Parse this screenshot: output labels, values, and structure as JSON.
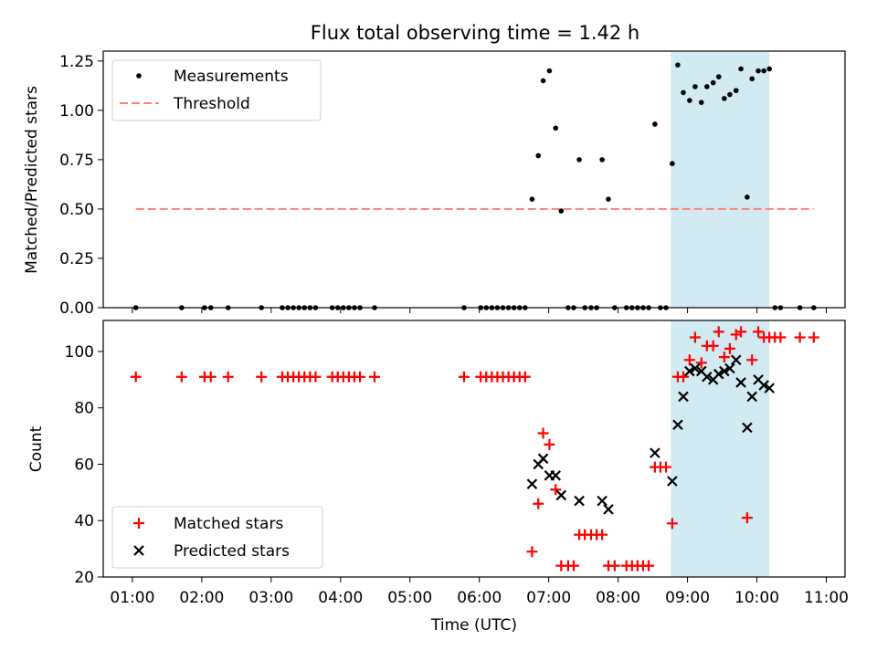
{
  "chart_data": {
    "type": "scatter",
    "title": "Flux total observing time = 1.42 h",
    "xlabel": "Time (UTC)",
    "x_ticks": [
      "01:00",
      "02:00",
      "03:00",
      "04:00",
      "05:00",
      "06:00",
      "07:00",
      "08:00",
      "09:00",
      "10:00",
      "11:00"
    ],
    "x_tick_hours": [
      1,
      2,
      3,
      4,
      5,
      6,
      7,
      8,
      9,
      10,
      11
    ],
    "xlim": [
      0.58,
      11.27
    ],
    "shaded_region": {
      "from": 8.76,
      "to": 10.18,
      "color": "#add8e6"
    },
    "top": {
      "ylabel": "Matched/Predicted stars",
      "ylim": [
        0,
        1.3
      ],
      "y_ticks": [
        "0.00",
        "0.25",
        "0.50",
        "0.75",
        "1.00",
        "1.25"
      ],
      "y_tick_values": [
        0,
        0.25,
        0.5,
        0.75,
        1.0,
        1.25
      ],
      "legend": {
        "measurements": "Measurements",
        "threshold": "Threshold"
      },
      "threshold": {
        "x": [
          1.05,
          10.82
        ],
        "y": 0.5,
        "color": "#ff7f7f"
      },
      "measurements": [
        [
          1.05,
          0
        ],
        [
          1.71,
          0
        ],
        [
          2.04,
          0
        ],
        [
          2.13,
          0
        ],
        [
          2.38,
          0
        ],
        [
          2.86,
          0
        ],
        [
          3.16,
          0
        ],
        [
          3.24,
          0
        ],
        [
          3.32,
          0
        ],
        [
          3.4,
          0
        ],
        [
          3.48,
          0
        ],
        [
          3.56,
          0
        ],
        [
          3.64,
          0
        ],
        [
          3.88,
          0
        ],
        [
          3.96,
          0
        ],
        [
          4.04,
          0
        ],
        [
          4.12,
          0
        ],
        [
          4.2,
          0
        ],
        [
          4.28,
          0
        ],
        [
          4.49,
          0
        ],
        [
          5.78,
          0
        ],
        [
          6.02,
          0
        ],
        [
          6.1,
          0
        ],
        [
          6.18,
          0
        ],
        [
          6.26,
          0
        ],
        [
          6.34,
          0
        ],
        [
          6.42,
          0
        ],
        [
          6.5,
          0
        ],
        [
          6.58,
          0
        ],
        [
          6.66,
          0
        ],
        [
          6.76,
          0.55
        ],
        [
          6.85,
          0.77
        ],
        [
          6.92,
          1.15
        ],
        [
          7.01,
          1.2
        ],
        [
          7.1,
          0.91
        ],
        [
          7.18,
          0.49
        ],
        [
          7.28,
          0
        ],
        [
          7.36,
          0
        ],
        [
          7.44,
          0.75
        ],
        [
          7.52,
          0
        ],
        [
          7.61,
          0
        ],
        [
          7.69,
          0
        ],
        [
          7.77,
          0.75
        ],
        [
          7.86,
          0.55
        ],
        [
          7.95,
          0
        ],
        [
          8.12,
          0
        ],
        [
          8.2,
          0
        ],
        [
          8.28,
          0
        ],
        [
          8.36,
          0
        ],
        [
          8.44,
          0
        ],
        [
          8.53,
          0.93
        ],
        [
          8.61,
          0
        ],
        [
          8.69,
          0
        ],
        [
          8.78,
          0.73
        ],
        [
          8.86,
          1.23
        ],
        [
          8.94,
          1.09
        ],
        [
          9.03,
          1.05
        ],
        [
          9.11,
          1.12
        ],
        [
          9.2,
          1.04
        ],
        [
          9.28,
          1.12
        ],
        [
          9.37,
          1.14
        ],
        [
          9.45,
          1.17
        ],
        [
          9.53,
          1.06
        ],
        [
          9.61,
          1.08
        ],
        [
          9.7,
          1.1
        ],
        [
          9.77,
          1.21
        ],
        [
          9.86,
          0.56
        ],
        [
          9.93,
          1.16
        ],
        [
          10.02,
          1.2
        ],
        [
          10.1,
          1.2
        ],
        [
          10.18,
          1.21
        ],
        [
          10.26,
          0
        ],
        [
          10.34,
          0
        ],
        [
          10.62,
          0
        ],
        [
          10.82,
          0
        ]
      ]
    },
    "bottom": {
      "ylabel": "Count",
      "ylim": [
        20,
        111
      ],
      "y_ticks": [
        "20",
        "40",
        "60",
        "80",
        "100"
      ],
      "y_tick_values": [
        20,
        40,
        60,
        80,
        100
      ],
      "legend": {
        "matched": "Matched stars",
        "predicted": "Predicted stars"
      },
      "matched": [
        [
          1.05,
          91
        ],
        [
          1.71,
          91
        ],
        [
          2.04,
          91
        ],
        [
          2.13,
          91
        ],
        [
          2.38,
          91
        ],
        [
          2.86,
          91
        ],
        [
          3.16,
          91
        ],
        [
          3.24,
          91
        ],
        [
          3.32,
          91
        ],
        [
          3.4,
          91
        ],
        [
          3.48,
          91
        ],
        [
          3.56,
          91
        ],
        [
          3.64,
          91
        ],
        [
          3.88,
          91
        ],
        [
          3.96,
          91
        ],
        [
          4.04,
          91
        ],
        [
          4.12,
          91
        ],
        [
          4.2,
          91
        ],
        [
          4.28,
          91
        ],
        [
          4.49,
          91
        ],
        [
          5.78,
          91
        ],
        [
          6.02,
          91
        ],
        [
          6.1,
          91
        ],
        [
          6.18,
          91
        ],
        [
          6.26,
          91
        ],
        [
          6.34,
          91
        ],
        [
          6.42,
          91
        ],
        [
          6.5,
          91
        ],
        [
          6.58,
          91
        ],
        [
          6.66,
          91
        ],
        [
          6.76,
          29
        ],
        [
          6.85,
          46
        ],
        [
          6.92,
          71
        ],
        [
          7.01,
          67
        ],
        [
          7.1,
          51
        ],
        [
          7.18,
          24
        ],
        [
          7.28,
          24
        ],
        [
          7.36,
          24
        ],
        [
          7.44,
          35
        ],
        [
          7.52,
          35
        ],
        [
          7.61,
          35
        ],
        [
          7.69,
          35
        ],
        [
          7.77,
          35
        ],
        [
          7.86,
          24
        ],
        [
          7.95,
          24
        ],
        [
          8.12,
          24
        ],
        [
          8.2,
          24
        ],
        [
          8.28,
          24
        ],
        [
          8.36,
          24
        ],
        [
          8.44,
          24
        ],
        [
          8.53,
          59
        ],
        [
          8.61,
          59
        ],
        [
          8.69,
          59
        ],
        [
          8.78,
          39
        ],
        [
          8.86,
          91
        ],
        [
          8.94,
          91
        ],
        [
          9.03,
          97
        ],
        [
          9.11,
          105
        ],
        [
          9.2,
          96
        ],
        [
          9.28,
          102
        ],
        [
          9.37,
          102
        ],
        [
          9.45,
          107
        ],
        [
          9.53,
          98
        ],
        [
          9.61,
          101
        ],
        [
          9.7,
          106
        ],
        [
          9.77,
          107
        ],
        [
          9.86,
          41
        ],
        [
          9.93,
          97
        ],
        [
          10.02,
          107
        ],
        [
          10.1,
          105
        ],
        [
          10.18,
          105
        ],
        [
          10.26,
          105
        ],
        [
          10.34,
          105
        ],
        [
          10.62,
          105
        ],
        [
          10.82,
          105
        ]
      ],
      "predicted": [
        [
          6.76,
          53
        ],
        [
          6.85,
          60
        ],
        [
          6.92,
          62
        ],
        [
          7.01,
          56
        ],
        [
          7.1,
          56
        ],
        [
          7.18,
          49
        ],
        [
          7.44,
          47
        ],
        [
          7.77,
          47
        ],
        [
          7.86,
          44
        ],
        [
          8.53,
          64
        ],
        [
          8.78,
          54
        ],
        [
          8.86,
          74
        ],
        [
          8.94,
          84
        ],
        [
          9.03,
          93
        ],
        [
          9.11,
          94
        ],
        [
          9.2,
          93
        ],
        [
          9.28,
          91
        ],
        [
          9.37,
          90
        ],
        [
          9.45,
          92
        ],
        [
          9.53,
          93
        ],
        [
          9.61,
          94
        ],
        [
          9.7,
          97
        ],
        [
          9.77,
          89
        ],
        [
          9.86,
          73
        ],
        [
          9.93,
          84
        ],
        [
          10.02,
          90
        ],
        [
          10.1,
          88
        ],
        [
          10.18,
          87
        ]
      ]
    }
  }
}
